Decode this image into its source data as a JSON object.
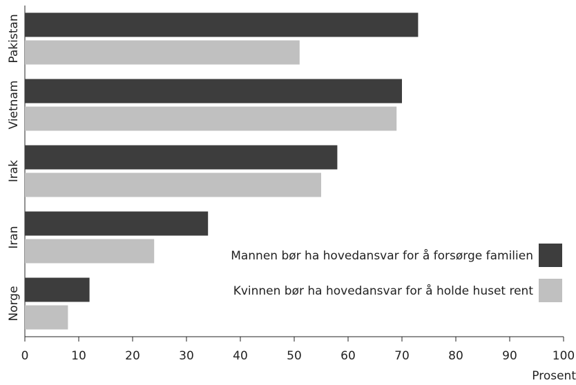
{
  "chart_data": {
    "type": "barh",
    "categories": [
      "Pakistan",
      "Vietnam",
      "Irak",
      "Iran",
      "Norge"
    ],
    "series": [
      {
        "name": "Mannen bør ha hovedansvar for å forsørge familien",
        "color": "#3d3d3d",
        "values": [
          73,
          70,
          58,
          34,
          12
        ]
      },
      {
        "name": "Kvinnen bør ha hovedansvar for å holde huset rent",
        "color": "#c0c0c0",
        "values": [
          51,
          69,
          55,
          24,
          8
        ]
      }
    ],
    "xlabel": "Prosent",
    "xlim": [
      0,
      100
    ],
    "xticks": [
      0,
      10,
      20,
      30,
      40,
      50,
      60,
      70,
      80,
      90,
      100
    ],
    "legend": "lower right",
    "grid": false
  }
}
